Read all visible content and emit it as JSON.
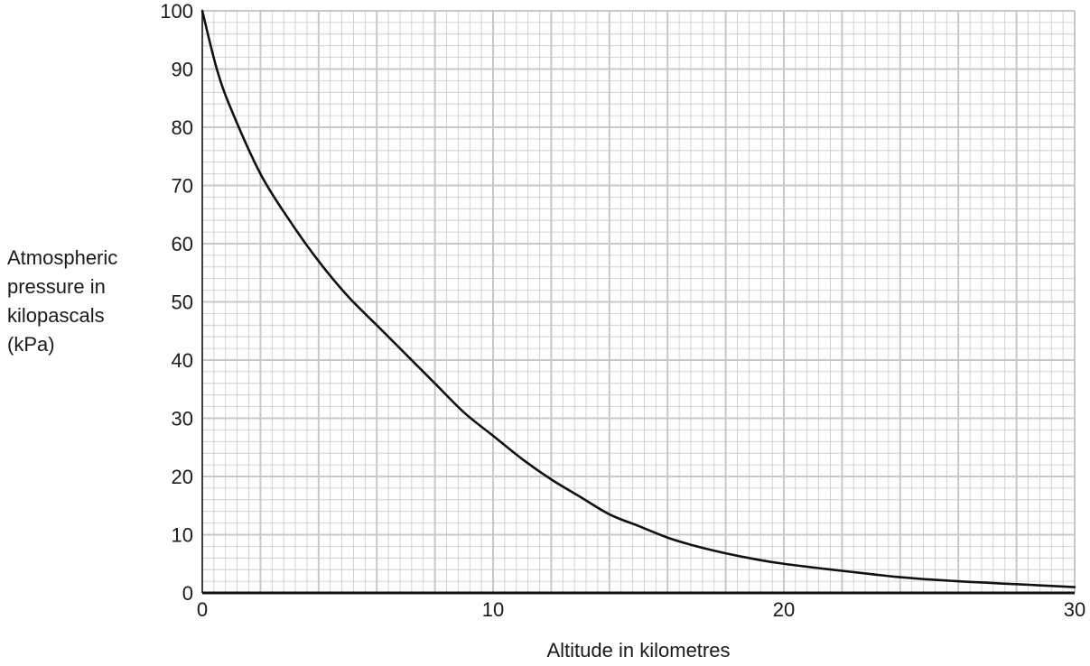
{
  "chart_data": {
    "type": "line",
    "title": "",
    "xlabel": "Altitude in kilometres",
    "ylabel_lines": [
      "Atmospheric",
      "pressure in",
      "kilopascals",
      "(kPa)"
    ],
    "xlim": [
      0,
      30
    ],
    "ylim": [
      0,
      100
    ],
    "x_ticks": [
      0,
      10,
      20,
      30
    ],
    "y_ticks": [
      0,
      10,
      20,
      30,
      40,
      50,
      60,
      70,
      80,
      90,
      100
    ],
    "grid": {
      "major_x_step": 2,
      "minor_x_step": 0.4,
      "major_y_step": 10,
      "minor_y_step": 2
    },
    "series": [
      {
        "x": [
          0,
          0.5,
          1,
          2,
          3,
          4,
          5,
          6,
          7,
          8,
          9,
          10,
          11,
          12,
          13,
          14,
          15,
          16,
          17,
          18,
          19,
          20,
          22,
          24,
          26,
          28,
          30
        ],
        "y": [
          100,
          90,
          83,
          72,
          64,
          57,
          51,
          46,
          41,
          36,
          31,
          27,
          23,
          19.5,
          16.5,
          13.5,
          11.5,
          9.5,
          8,
          6.8,
          5.8,
          5,
          3.8,
          2.7,
          2,
          1.5,
          1
        ]
      }
    ]
  },
  "colors": {
    "grid": "#c8c8c8",
    "curve": "#111111",
    "axis": "#111111"
  }
}
